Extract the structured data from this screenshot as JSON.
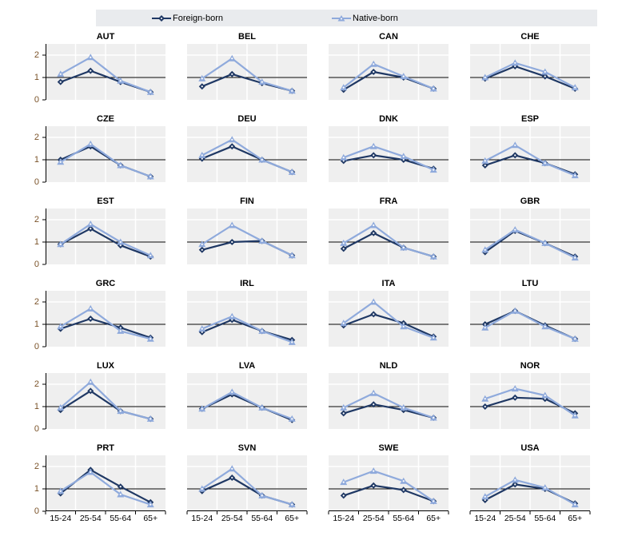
{
  "legend": {
    "foreign_label": "Foreign-born",
    "native_label": "Native-born"
  },
  "colors": {
    "foreign": "#1f3864",
    "native": "#8faadc",
    "panel_bg": "#efefef",
    "gridline": "#ffffff",
    "legend_bg": "#e9ebee",
    "refline": "#000000",
    "axis": "#000000",
    "ytick_label": "#7a5228",
    "xtick_label": "#000000"
  },
  "chart_data": {
    "type": "line",
    "categories": [
      "15-24",
      "25-54",
      "55-64",
      "65+"
    ],
    "ylim": [
      0,
      2.5
    ],
    "yticks": [
      0,
      1,
      2
    ],
    "refline_y": 1,
    "legend_position": "top",
    "grid": true,
    "series_names": [
      "Foreign-born",
      "Native-born"
    ],
    "panels": [
      {
        "title": "AUT",
        "foreign": [
          0.8,
          1.3,
          0.8,
          0.35
        ],
        "native": [
          1.15,
          1.9,
          0.85,
          0.35
        ]
      },
      {
        "title": "BEL",
        "foreign": [
          0.6,
          1.15,
          0.75,
          0.4
        ],
        "native": [
          0.95,
          1.85,
          0.8,
          0.4
        ]
      },
      {
        "title": "CAN",
        "foreign": [
          0.45,
          1.25,
          1.0,
          0.5
        ],
        "native": [
          0.55,
          1.6,
          1.05,
          0.5
        ]
      },
      {
        "title": "CHE",
        "foreign": [
          0.95,
          1.5,
          1.05,
          0.5
        ],
        "native": [
          1.0,
          1.65,
          1.25,
          0.55
        ]
      },
      {
        "title": "CZE",
        "foreign": [
          1.0,
          1.6,
          0.75,
          0.25
        ],
        "native": [
          0.9,
          1.7,
          0.75,
          0.25
        ]
      },
      {
        "title": "DEU",
        "foreign": [
          1.05,
          1.6,
          1.0,
          0.45
        ],
        "native": [
          1.2,
          1.9,
          1.0,
          0.45
        ]
      },
      {
        "title": "DNK",
        "foreign": [
          0.95,
          1.2,
          1.0,
          0.6
        ],
        "native": [
          1.1,
          1.6,
          1.15,
          0.55
        ]
      },
      {
        "title": "ESP",
        "foreign": [
          0.75,
          1.2,
          0.85,
          0.35
        ],
        "native": [
          0.95,
          1.65,
          0.85,
          0.3
        ]
      },
      {
        "title": "EST",
        "foreign": [
          0.9,
          1.6,
          0.85,
          0.35
        ],
        "native": [
          0.9,
          1.8,
          1.0,
          0.4
        ]
      },
      {
        "title": "FIN",
        "foreign": [
          0.65,
          1.0,
          1.05,
          0.4
        ],
        "native": [
          0.9,
          1.75,
          1.05,
          0.4
        ]
      },
      {
        "title": "FRA",
        "foreign": [
          0.7,
          1.4,
          0.75,
          0.35
        ],
        "native": [
          0.95,
          1.75,
          0.75,
          0.35
        ]
      },
      {
        "title": "GBR",
        "foreign": [
          0.55,
          1.5,
          0.95,
          0.35
        ],
        "native": [
          0.65,
          1.55,
          0.95,
          0.3
        ]
      },
      {
        "title": "GRC",
        "foreign": [
          0.8,
          1.25,
          0.85,
          0.4
        ],
        "native": [
          0.9,
          1.7,
          0.7,
          0.35
        ]
      },
      {
        "title": "IRL",
        "foreign": [
          0.65,
          1.2,
          0.7,
          0.3
        ],
        "native": [
          0.8,
          1.35,
          0.7,
          0.2
        ]
      },
      {
        "title": "ITA",
        "foreign": [
          0.95,
          1.45,
          1.05,
          0.45
        ],
        "native": [
          1.05,
          2.0,
          0.9,
          0.4
        ]
      },
      {
        "title": "LTU",
        "foreign": [
          1.0,
          1.6,
          0.95,
          0.35
        ],
        "native": [
          0.85,
          1.6,
          0.9,
          0.35
        ]
      },
      {
        "title": "LUX",
        "foreign": [
          0.85,
          1.7,
          0.8,
          0.45
        ],
        "native": [
          0.95,
          2.1,
          0.8,
          0.45
        ]
      },
      {
        "title": "LVA",
        "foreign": [
          0.9,
          1.55,
          0.95,
          0.4
        ],
        "native": [
          0.9,
          1.65,
          0.95,
          0.45
        ]
      },
      {
        "title": "NLD",
        "foreign": [
          0.7,
          1.1,
          0.85,
          0.5
        ],
        "native": [
          0.95,
          1.6,
          0.95,
          0.5
        ]
      },
      {
        "title": "NOR",
        "foreign": [
          1.0,
          1.4,
          1.35,
          0.7
        ],
        "native": [
          1.35,
          1.8,
          1.5,
          0.6
        ]
      },
      {
        "title": "PRT",
        "foreign": [
          0.8,
          1.85,
          1.1,
          0.4
        ],
        "native": [
          0.9,
          1.75,
          0.75,
          0.3
        ]
      },
      {
        "title": "SVN",
        "foreign": [
          0.9,
          1.5,
          0.7,
          0.3
        ],
        "native": [
          1.0,
          1.9,
          0.7,
          0.3
        ]
      },
      {
        "title": "SWE",
        "foreign": [
          0.7,
          1.15,
          0.95,
          0.45
        ],
        "native": [
          1.3,
          1.8,
          1.35,
          0.45
        ]
      },
      {
        "title": "USA",
        "foreign": [
          0.5,
          1.2,
          1.0,
          0.35
        ],
        "native": [
          0.65,
          1.4,
          1.05,
          0.3
        ]
      }
    ]
  }
}
